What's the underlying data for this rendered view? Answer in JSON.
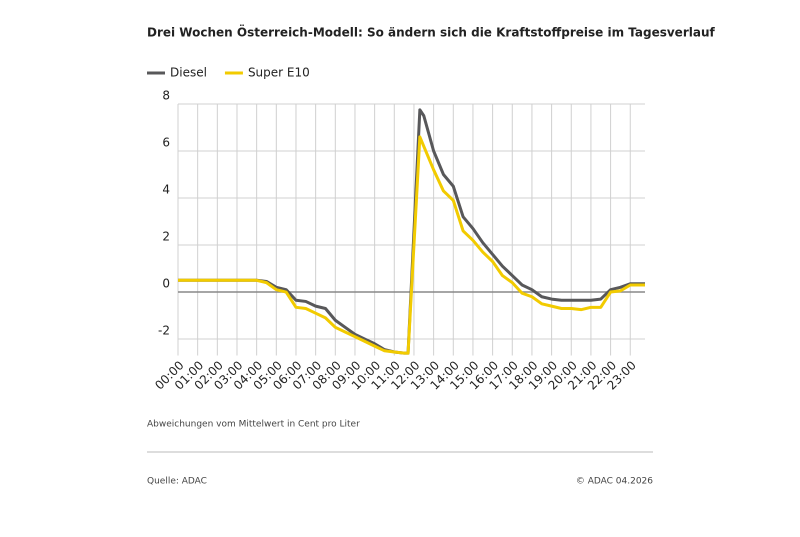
{
  "chart_data": {
    "type": "line",
    "title": "Drei Wochen Österreich-Modell: So ändern sich die Kraftstoffpreise im Tagesverlauf",
    "note": "Abweichungen vom Mittelwert in Cent pro Liter",
    "source": "Quelle: ADAC",
    "copyright": "© ADAC 04.2026",
    "x": [
      0,
      0.5,
      1,
      1.5,
      2,
      2.5,
      3,
      3.5,
      4,
      4.5,
      5,
      5.5,
      6,
      6.5,
      7,
      7.5,
      8,
      8.5,
      9,
      9.5,
      10,
      10.5,
      11,
      11.5,
      11.7,
      12.3,
      12.5,
      13,
      13.5,
      14,
      14.5,
      15,
      15.5,
      16,
      16.5,
      17,
      17.5,
      18,
      18.5,
      19,
      19.5,
      20,
      20.5,
      21,
      21.5,
      22,
      22.5,
      23,
      23.5,
      23.75
    ],
    "series": [
      {
        "name": "Diesel",
        "color": "#58585a",
        "values": [
          0.5,
          0.5,
          0.5,
          0.5,
          0.5,
          0.5,
          0.5,
          0.5,
          0.5,
          0.45,
          0.2,
          0.1,
          -0.35,
          -0.4,
          -0.6,
          -0.7,
          -1.2,
          -1.5,
          -1.8,
          -2.0,
          -2.2,
          -2.45,
          -2.55,
          -2.6,
          -2.6,
          7.75,
          7.5,
          6.0,
          5.0,
          4.5,
          3.2,
          2.7,
          2.1,
          1.6,
          1.1,
          0.7,
          0.3,
          0.1,
          -0.2,
          -0.3,
          -0.35,
          -0.35,
          -0.35,
          -0.35,
          -0.3,
          0.1,
          0.2,
          0.35,
          0.35,
          0.35
        ]
      },
      {
        "name": "Super E10",
        "color": "#f2cb00",
        "values": [
          0.5,
          0.5,
          0.5,
          0.5,
          0.5,
          0.5,
          0.5,
          0.5,
          0.5,
          0.4,
          0.1,
          0.0,
          -0.65,
          -0.7,
          -0.9,
          -1.1,
          -1.5,
          -1.7,
          -1.9,
          -2.1,
          -2.3,
          -2.5,
          -2.55,
          -2.6,
          -2.6,
          6.6,
          6.2,
          5.2,
          4.3,
          3.9,
          2.6,
          2.2,
          1.7,
          1.3,
          0.7,
          0.4,
          -0.05,
          -0.2,
          -0.5,
          -0.6,
          -0.7,
          -0.7,
          -0.75,
          -0.65,
          -0.65,
          0.0,
          0.05,
          0.3,
          0.3,
          0.3
        ]
      }
    ],
    "xlim": [
      0,
      23.75
    ],
    "xticks": [
      {
        "value": 0,
        "label": "00:00"
      },
      {
        "value": 1,
        "label": "01:00"
      },
      {
        "value": 2,
        "label": "02:00"
      },
      {
        "value": 3,
        "label": "03:00"
      },
      {
        "value": 4,
        "label": "04:00"
      },
      {
        "value": 5,
        "label": "05:00"
      },
      {
        "value": 6,
        "label": "06:00"
      },
      {
        "value": 7,
        "label": "07:00"
      },
      {
        "value": 8,
        "label": "08:00"
      },
      {
        "value": 9,
        "label": "09:00"
      },
      {
        "value": 10,
        "label": "10:00"
      },
      {
        "value": 11,
        "label": "11:00"
      },
      {
        "value": 12,
        "label": "12:00"
      },
      {
        "value": 13,
        "label": "13:00"
      },
      {
        "value": 14,
        "label": "14:00"
      },
      {
        "value": 15,
        "label": "15:00"
      },
      {
        "value": 16,
        "label": "16:00"
      },
      {
        "value": 17,
        "label": "17:00"
      },
      {
        "value": 18,
        "label": "18:00"
      },
      {
        "value": 19,
        "label": "19:00"
      },
      {
        "value": 20,
        "label": "20:00"
      },
      {
        "value": 21,
        "label": "21:00"
      },
      {
        "value": 22,
        "label": "22:00"
      },
      {
        "value": 23,
        "label": "23:00"
      }
    ],
    "ylim": [
      -2.7,
      8
    ],
    "yticks": [
      -2,
      0,
      2,
      4,
      6,
      8
    ],
    "grid": true
  }
}
